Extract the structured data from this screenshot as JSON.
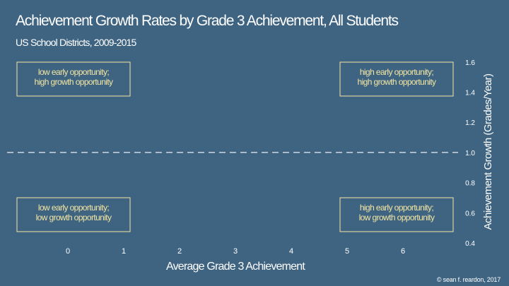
{
  "title": "Achievement Growth Rates by Grade 3 Achievement, All Students",
  "subtitle": "US School Districts, 2009-2015",
  "credit": "© sean f. reardon, 2017",
  "colors": {
    "background": "#3f6482",
    "quadrant_border": "#f3e6a2",
    "quadrant_text": "#f3e6a2",
    "reference_line": "#e8edf2",
    "text": "#ffffff"
  },
  "chart_data": {
    "type": "scatter",
    "title": "Achievement Growth Rates by Grade 3 Achievement, All Students",
    "subtitle": "US School Districts, 2009-2015",
    "xlabel": "Average Grade 3 Achievement",
    "ylabel": "Achievement Growth (Grades/Year)",
    "xlim": [
      -1,
      7
    ],
    "ylim": [
      0.4,
      1.6
    ],
    "x_ticks": [
      "0",
      "1",
      "2",
      "3",
      "4",
      "5",
      "6"
    ],
    "y_ticks": [
      "0.4",
      "0.6",
      "0.8",
      "1.0",
      "1.2",
      "1.4",
      "1.6"
    ],
    "y_axis_position": "right",
    "grid": false,
    "reference_line": {
      "axis": "y",
      "value": 1.0,
      "style": "dashed"
    },
    "series": [],
    "annotations": [
      {
        "id": "top-left",
        "lines": [
          "low early opportunity;",
          "high growth opportunity"
        ],
        "placement": "top-left"
      },
      {
        "id": "top-right",
        "lines": [
          "high early opportunity;",
          "high growth opportunity"
        ],
        "placement": "top-right"
      },
      {
        "id": "bottom-left",
        "lines": [
          "low early opportunity;",
          "low growth opportunity"
        ],
        "placement": "bottom-left"
      },
      {
        "id": "bottom-right",
        "lines": [
          "high early opportunity;",
          "low growth opportunity"
        ],
        "placement": "bottom-right"
      }
    ]
  }
}
